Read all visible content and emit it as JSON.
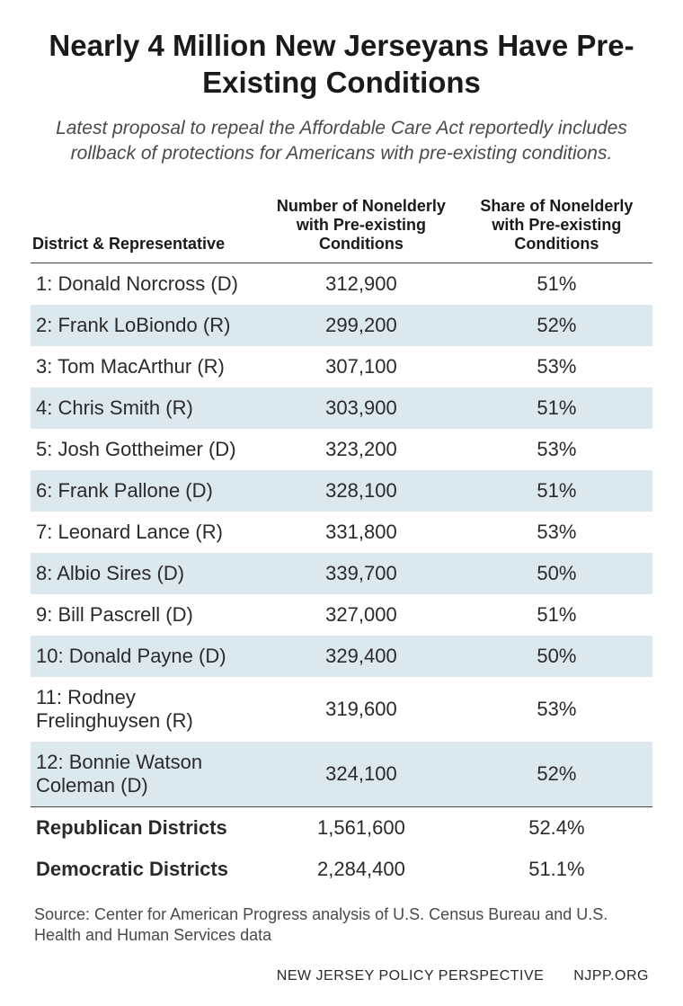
{
  "title": "Nearly 4 Million New Jerseyans Have Pre-Existing Conditions",
  "subtitle": "Latest proposal to repeal the Affordable Care Act reportedly includes rollback of protections for Americans with pre-existing conditions.",
  "table": {
    "type": "table",
    "columns": [
      "District & Representative",
      "Number of Nonelderly with Pre-existing Conditions",
      "Share of Nonelderly with Pre-existing Conditions"
    ],
    "stripe_color": "#dbe9ef",
    "background_color": "#ffffff",
    "border_color": "#444444",
    "header_fontsize": 18,
    "body_fontsize": 22,
    "rows": [
      {
        "label": "1: Donald Norcross (D)",
        "number": "312,900",
        "share": "51%",
        "striped": false
      },
      {
        "label": "2: Frank LoBiondo (R)",
        "number": "299,200",
        "share": "52%",
        "striped": true
      },
      {
        "label": "3: Tom MacArthur (R)",
        "number": "307,100",
        "share": "53%",
        "striped": false
      },
      {
        "label": "4: Chris Smith (R)",
        "number": "303,900",
        "share": "51%",
        "striped": true
      },
      {
        "label": "5: Josh Gottheimer (D)",
        "number": "323,200",
        "share": "53%",
        "striped": false
      },
      {
        "label": "6: Frank Pallone (D)",
        "number": "328,100",
        "share": "51%",
        "striped": true
      },
      {
        "label": "7: Leonard Lance (R)",
        "number": "331,800",
        "share": "53%",
        "striped": false
      },
      {
        "label": "8: Albio Sires (D)",
        "number": "339,700",
        "share": "50%",
        "striped": true
      },
      {
        "label": "9: Bill Pascrell (D)",
        "number": "327,000",
        "share": "51%",
        "striped": false
      },
      {
        "label": "10: Donald Payne (D)",
        "number": "329,400",
        "share": "50%",
        "striped": true
      },
      {
        "label": "11: Rodney Frelinghuysen (R)",
        "number": "319,600",
        "share": "53%",
        "striped": false
      },
      {
        "label": "12: Bonnie Watson Coleman (D)",
        "number": "324,100",
        "share": "52%",
        "striped": true
      }
    ],
    "summary": [
      {
        "label": "Republican Districts",
        "number": "1,561,600",
        "share": "52.4%"
      },
      {
        "label": "Democratic Districts",
        "number": "2,284,400",
        "share": "51.1%"
      }
    ]
  },
  "source": "Source: Center for American Progress analysis of U.S. Census Bureau and U.S. Health and Human Services data",
  "footer": {
    "org": "NEW JERSEY POLICY PERSPECTIVE",
    "site": "NJPP.ORG"
  },
  "colors": {
    "text_primary": "#1a1a1a",
    "text_body": "#2a2a2a",
    "text_muted": "#4a4a4a"
  }
}
